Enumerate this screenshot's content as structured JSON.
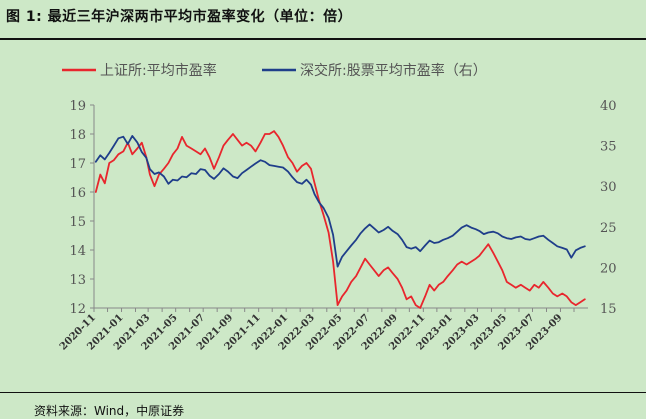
{
  "figure": {
    "title": "图 1:  最近三年沪深两市平均市盈率变化（单位：倍）",
    "source": "资料来源：Wind，中原证券"
  },
  "chart_data": {
    "type": "line",
    "title": "",
    "xlabel": "",
    "ylabel": "",
    "legend_position": "top",
    "grid": false,
    "x_tick_labels": [
      "2020-11",
      "2021-01",
      "2021-03",
      "2021-05",
      "2021-07",
      "2021-09",
      "2021-11",
      "2022-01",
      "2022-03",
      "2022-05",
      "2022-07",
      "2022-09",
      "2022-11",
      "2023-01",
      "2023-03",
      "2023-05",
      "2023-07",
      "2023-09"
    ],
    "x_months": [
      "2020-11",
      "2020-12",
      "2021-01",
      "2021-02",
      "2021-03",
      "2021-04",
      "2021-05",
      "2021-06",
      "2021-07",
      "2021-08",
      "2021-09",
      "2021-10",
      "2021-11",
      "2021-12",
      "2022-01",
      "2022-02",
      "2022-03",
      "2022-04",
      "2022-05",
      "2022-06",
      "2022-07",
      "2022-08",
      "2022-09",
      "2022-10",
      "2022-11",
      "2022-12",
      "2023-01",
      "2023-02",
      "2023-03",
      "2023-04",
      "2023-05",
      "2023-06",
      "2023-07",
      "2023-08",
      "2023-09",
      "2023-10"
    ],
    "y_left": {
      "min": 12,
      "max": 19,
      "ticks": [
        12,
        13,
        14,
        15,
        16,
        17,
        18,
        19
      ]
    },
    "y_right": {
      "min": 15,
      "max": 40,
      "ticks": [
        15,
        20,
        25,
        30,
        35,
        40
      ]
    },
    "series": [
      {
        "name": "上证所:平均市盈率",
        "color": "#e8262d",
        "axis": "left",
        "points": [
          [
            "2020-11-05",
            16.0
          ],
          [
            "2020-11-15",
            16.6
          ],
          [
            "2020-11-25",
            16.3
          ],
          [
            "2020-12-05",
            17.0
          ],
          [
            "2020-12-15",
            17.1
          ],
          [
            "2020-12-25",
            17.3
          ],
          [
            "2021-01-05",
            17.4
          ],
          [
            "2021-01-15",
            17.7
          ],
          [
            "2021-01-25",
            17.3
          ],
          [
            "2021-02-05",
            17.5
          ],
          [
            "2021-02-15",
            17.7
          ],
          [
            "2021-02-25",
            17.2
          ],
          [
            "2021-03-05",
            16.6
          ],
          [
            "2021-03-15",
            16.2
          ],
          [
            "2021-03-25",
            16.6
          ],
          [
            "2021-04-05",
            16.8
          ],
          [
            "2021-04-15",
            17.0
          ],
          [
            "2021-04-25",
            17.3
          ],
          [
            "2021-05-05",
            17.5
          ],
          [
            "2021-05-15",
            17.9
          ],
          [
            "2021-05-25",
            17.6
          ],
          [
            "2021-06-05",
            17.5
          ],
          [
            "2021-06-15",
            17.4
          ],
          [
            "2021-06-25",
            17.3
          ],
          [
            "2021-07-05",
            17.5
          ],
          [
            "2021-07-15",
            17.2
          ],
          [
            "2021-07-25",
            16.8
          ],
          [
            "2021-08-05",
            17.2
          ],
          [
            "2021-08-15",
            17.6
          ],
          [
            "2021-08-25",
            17.8
          ],
          [
            "2021-09-05",
            18.0
          ],
          [
            "2021-09-15",
            17.8
          ],
          [
            "2021-09-25",
            17.6
          ],
          [
            "2021-10-05",
            17.7
          ],
          [
            "2021-10-15",
            17.6
          ],
          [
            "2021-10-25",
            17.4
          ],
          [
            "2021-11-05",
            17.7
          ],
          [
            "2021-11-15",
            18.0
          ],
          [
            "2021-11-25",
            18.0
          ],
          [
            "2021-12-05",
            18.1
          ],
          [
            "2021-12-15",
            17.9
          ],
          [
            "2021-12-25",
            17.6
          ],
          [
            "2022-01-05",
            17.2
          ],
          [
            "2022-01-15",
            17.0
          ],
          [
            "2022-01-25",
            16.7
          ],
          [
            "2022-02-05",
            16.9
          ],
          [
            "2022-02-15",
            17.0
          ],
          [
            "2022-02-25",
            16.8
          ],
          [
            "2022-03-05",
            16.3
          ],
          [
            "2022-03-15",
            15.7
          ],
          [
            "2022-03-25",
            15.2
          ],
          [
            "2022-04-05",
            14.6
          ],
          [
            "2022-04-15",
            13.6
          ],
          [
            "2022-04-25",
            12.1
          ],
          [
            "2022-05-05",
            12.4
          ],
          [
            "2022-05-15",
            12.6
          ],
          [
            "2022-05-25",
            12.9
          ],
          [
            "2022-06-05",
            13.1
          ],
          [
            "2022-06-15",
            13.4
          ],
          [
            "2022-06-25",
            13.7
          ],
          [
            "2022-07-05",
            13.5
          ],
          [
            "2022-07-15",
            13.3
          ],
          [
            "2022-07-25",
            13.1
          ],
          [
            "2022-08-05",
            13.3
          ],
          [
            "2022-08-15",
            13.4
          ],
          [
            "2022-08-25",
            13.2
          ],
          [
            "2022-09-05",
            13.0
          ],
          [
            "2022-09-15",
            12.7
          ],
          [
            "2022-09-25",
            12.3
          ],
          [
            "2022-10-05",
            12.4
          ],
          [
            "2022-10-15",
            12.1
          ],
          [
            "2022-10-25",
            12.0
          ],
          [
            "2022-11-05",
            12.4
          ],
          [
            "2022-11-15",
            12.8
          ],
          [
            "2022-11-25",
            12.6
          ],
          [
            "2022-12-05",
            12.8
          ],
          [
            "2022-12-15",
            12.9
          ],
          [
            "2022-12-25",
            13.1
          ],
          [
            "2023-01-05",
            13.3
          ],
          [
            "2023-01-15",
            13.5
          ],
          [
            "2023-01-25",
            13.6
          ],
          [
            "2023-02-05",
            13.5
          ],
          [
            "2023-02-15",
            13.6
          ],
          [
            "2023-02-25",
            13.7
          ],
          [
            "2023-03-05",
            13.8
          ],
          [
            "2023-03-15",
            14.0
          ],
          [
            "2023-03-25",
            14.2
          ],
          [
            "2023-04-05",
            13.9
          ],
          [
            "2023-04-15",
            13.6
          ],
          [
            "2023-04-25",
            13.3
          ],
          [
            "2023-05-05",
            12.9
          ],
          [
            "2023-05-15",
            12.8
          ],
          [
            "2023-05-25",
            12.7
          ],
          [
            "2023-06-05",
            12.8
          ],
          [
            "2023-06-15",
            12.7
          ],
          [
            "2023-06-25",
            12.6
          ],
          [
            "2023-07-05",
            12.8
          ],
          [
            "2023-07-15",
            12.7
          ],
          [
            "2023-07-25",
            12.9
          ],
          [
            "2023-08-05",
            12.7
          ],
          [
            "2023-08-15",
            12.5
          ],
          [
            "2023-08-25",
            12.4
          ],
          [
            "2023-09-05",
            12.5
          ],
          [
            "2023-09-15",
            12.4
          ],
          [
            "2023-09-25",
            12.2
          ],
          [
            "2023-10-05",
            12.1
          ],
          [
            "2023-10-15",
            12.2
          ],
          [
            "2023-10-25",
            12.3
          ]
        ]
      },
      {
        "name": "深交所:股票平均市盈率（右）",
        "color": "#1f3e8a",
        "axis": "right",
        "points": [
          [
            "2020-11-05",
            33.0
          ],
          [
            "2020-11-15",
            33.8
          ],
          [
            "2020-11-25",
            33.3
          ],
          [
            "2020-12-05",
            34.1
          ],
          [
            "2020-12-15",
            35.0
          ],
          [
            "2020-12-25",
            35.9
          ],
          [
            "2021-01-05",
            36.1
          ],
          [
            "2021-01-15",
            35.2
          ],
          [
            "2021-01-25",
            36.2
          ],
          [
            "2021-02-05",
            35.4
          ],
          [
            "2021-02-15",
            34.2
          ],
          [
            "2021-02-25",
            33.5
          ],
          [
            "2021-03-05",
            32.1
          ],
          [
            "2021-03-15",
            31.5
          ],
          [
            "2021-03-25",
            31.7
          ],
          [
            "2021-04-05",
            31.2
          ],
          [
            "2021-04-15",
            30.3
          ],
          [
            "2021-04-25",
            30.8
          ],
          [
            "2021-05-05",
            30.7
          ],
          [
            "2021-05-15",
            31.2
          ],
          [
            "2021-05-25",
            31.1
          ],
          [
            "2021-06-05",
            31.6
          ],
          [
            "2021-06-15",
            31.5
          ],
          [
            "2021-06-25",
            32.1
          ],
          [
            "2021-07-05",
            32.0
          ],
          [
            "2021-07-15",
            31.3
          ],
          [
            "2021-07-25",
            30.9
          ],
          [
            "2021-08-05",
            31.5
          ],
          [
            "2021-08-15",
            32.2
          ],
          [
            "2021-08-25",
            31.8
          ],
          [
            "2021-09-05",
            31.2
          ],
          [
            "2021-09-15",
            31.0
          ],
          [
            "2021-09-25",
            31.6
          ],
          [
            "2021-10-05",
            32.0
          ],
          [
            "2021-10-15",
            32.4
          ],
          [
            "2021-10-25",
            32.8
          ],
          [
            "2021-11-05",
            33.2
          ],
          [
            "2021-11-15",
            33.0
          ],
          [
            "2021-11-25",
            32.6
          ],
          [
            "2021-12-05",
            32.5
          ],
          [
            "2021-12-15",
            32.4
          ],
          [
            "2021-12-25",
            32.3
          ],
          [
            "2022-01-05",
            31.8
          ],
          [
            "2022-01-15",
            31.1
          ],
          [
            "2022-01-25",
            30.5
          ],
          [
            "2022-02-05",
            30.3
          ],
          [
            "2022-02-15",
            30.8
          ],
          [
            "2022-02-25",
            30.2
          ],
          [
            "2022-03-05",
            29.0
          ],
          [
            "2022-03-15",
            28.0
          ],
          [
            "2022-03-25",
            27.3
          ],
          [
            "2022-04-05",
            26.1
          ],
          [
            "2022-04-15",
            24.0
          ],
          [
            "2022-04-25",
            20.1
          ],
          [
            "2022-05-05",
            21.3
          ],
          [
            "2022-05-15",
            22.0
          ],
          [
            "2022-05-25",
            22.7
          ],
          [
            "2022-06-05",
            23.4
          ],
          [
            "2022-06-15",
            24.2
          ],
          [
            "2022-06-25",
            24.8
          ],
          [
            "2022-07-05",
            25.3
          ],
          [
            "2022-07-15",
            24.8
          ],
          [
            "2022-07-25",
            24.3
          ],
          [
            "2022-08-05",
            24.6
          ],
          [
            "2022-08-15",
            25.0
          ],
          [
            "2022-08-25",
            24.5
          ],
          [
            "2022-09-05",
            24.1
          ],
          [
            "2022-09-15",
            23.4
          ],
          [
            "2022-09-25",
            22.5
          ],
          [
            "2022-10-05",
            22.3
          ],
          [
            "2022-10-15",
            22.5
          ],
          [
            "2022-10-25",
            22.0
          ],
          [
            "2022-11-05",
            22.7
          ],
          [
            "2022-11-15",
            23.3
          ],
          [
            "2022-11-25",
            23.0
          ],
          [
            "2022-12-05",
            23.1
          ],
          [
            "2022-12-15",
            23.4
          ],
          [
            "2022-12-25",
            23.6
          ],
          [
            "2023-01-05",
            23.9
          ],
          [
            "2023-01-15",
            24.4
          ],
          [
            "2023-01-25",
            24.9
          ],
          [
            "2023-02-05",
            25.2
          ],
          [
            "2023-02-15",
            24.9
          ],
          [
            "2023-02-25",
            24.7
          ],
          [
            "2023-03-05",
            24.5
          ],
          [
            "2023-03-15",
            24.1
          ],
          [
            "2023-03-25",
            24.3
          ],
          [
            "2023-04-05",
            24.4
          ],
          [
            "2023-04-15",
            24.2
          ],
          [
            "2023-04-25",
            23.8
          ],
          [
            "2023-05-05",
            23.6
          ],
          [
            "2023-05-15",
            23.5
          ],
          [
            "2023-05-25",
            23.7
          ],
          [
            "2023-06-05",
            23.8
          ],
          [
            "2023-06-15",
            23.5
          ],
          [
            "2023-06-25",
            23.4
          ],
          [
            "2023-07-05",
            23.6
          ],
          [
            "2023-07-15",
            23.8
          ],
          [
            "2023-07-25",
            23.9
          ],
          [
            "2023-08-05",
            23.4
          ],
          [
            "2023-08-15",
            23.0
          ],
          [
            "2023-08-25",
            22.6
          ],
          [
            "2023-09-05",
            22.4
          ],
          [
            "2023-09-15",
            22.2
          ],
          [
            "2023-09-25",
            21.2
          ],
          [
            "2023-10-05",
            22.1
          ],
          [
            "2023-10-15",
            22.4
          ],
          [
            "2023-10-25",
            22.6
          ]
        ]
      }
    ]
  }
}
